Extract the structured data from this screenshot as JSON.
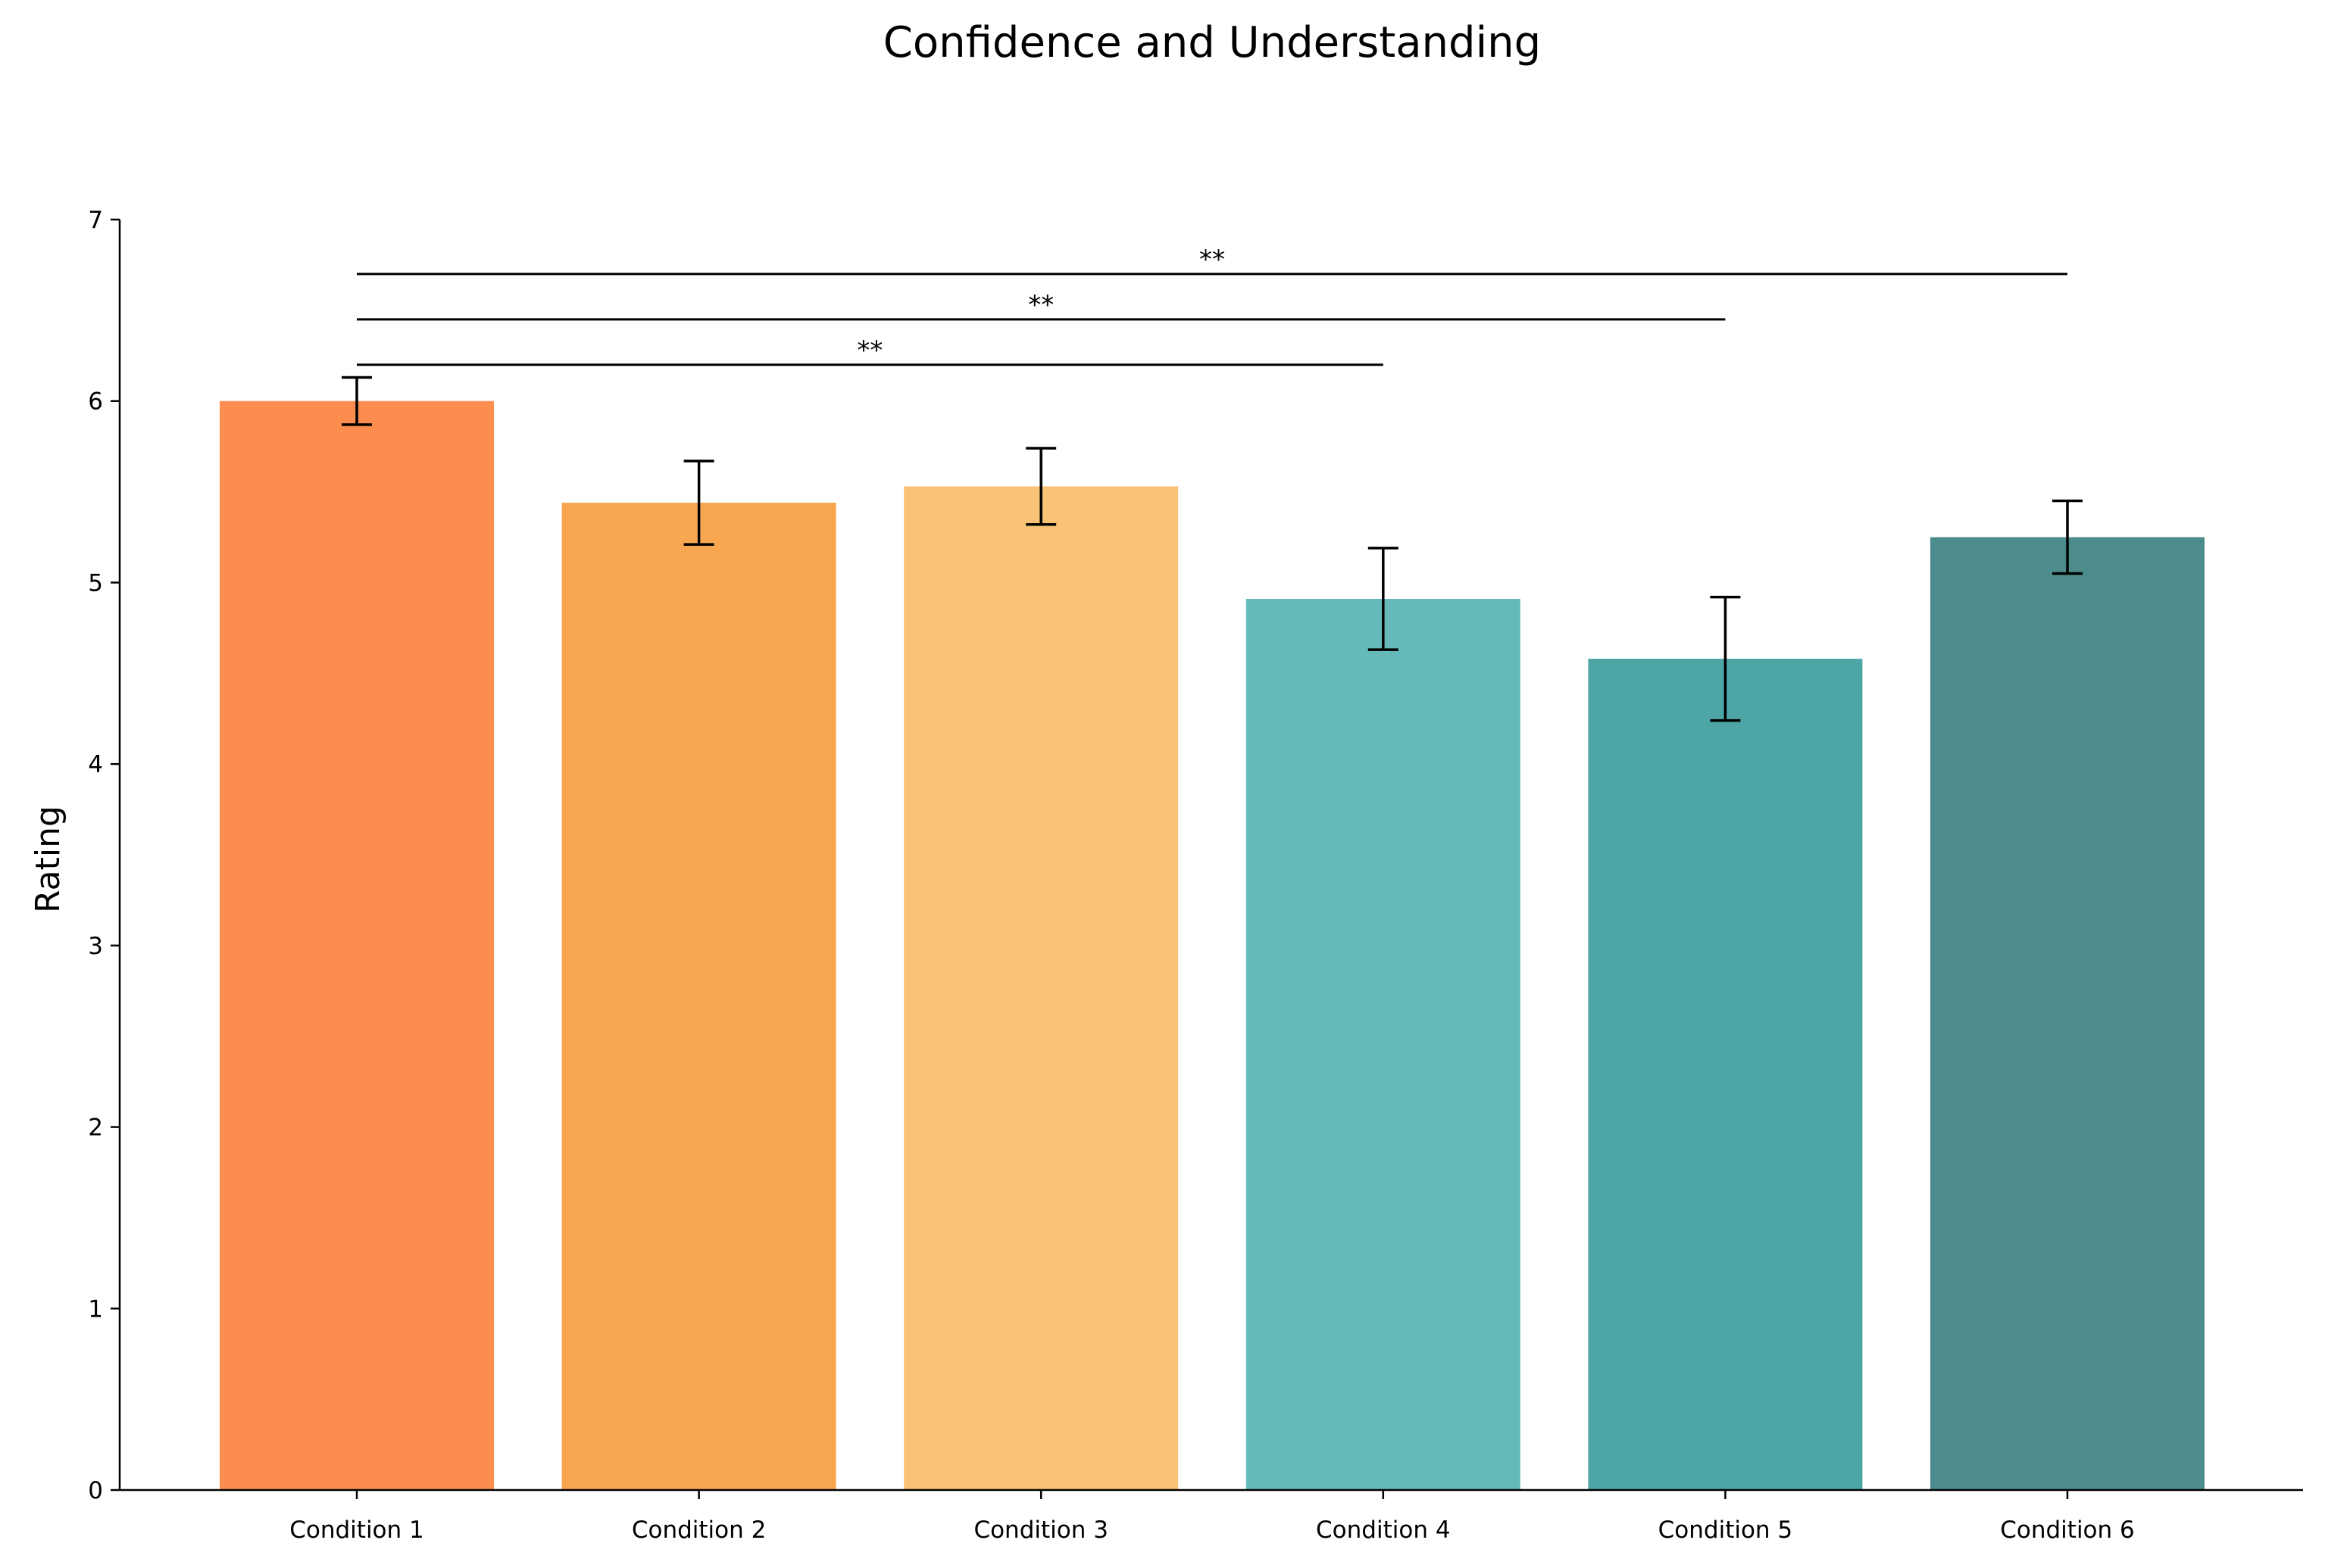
{
  "chart_data": {
    "type": "bar",
    "title": "Confidence and Understanding",
    "xlabel": "",
    "ylabel": "Rating",
    "ylim": [
      0,
      7
    ],
    "yticks": [
      "0",
      "1",
      "2",
      "3",
      "4",
      "5",
      "6",
      "7"
    ],
    "categories": [
      "Condition 1",
      "Condition 2",
      "Condition 3",
      "Condition 4",
      "Condition 5",
      "Condition 6"
    ],
    "values": [
      6.0,
      5.44,
      5.53,
      4.91,
      4.58,
      5.25
    ],
    "errors": [
      0.13,
      0.23,
      0.21,
      0.28,
      0.34,
      0.2
    ],
    "colors": [
      "#fc8d4f",
      "#f9a651",
      "#f9c375",
      "#66b9b9",
      "#4ea5a6",
      "#4c8c8c"
    ],
    "significance": [
      {
        "from": "Condition 1",
        "to": "Condition 4",
        "y": 6.2,
        "label": "**"
      },
      {
        "from": "Condition 1",
        "to": "Condition 5",
        "y": 6.45,
        "label": "**"
      },
      {
        "from": "Condition 1",
        "to": "Condition 6",
        "y": 6.7,
        "label": "**"
      }
    ],
    "grid": false,
    "legend": "none"
  }
}
